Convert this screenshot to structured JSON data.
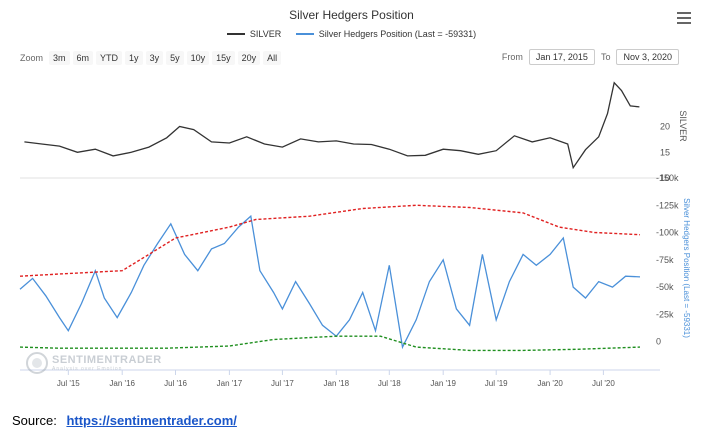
{
  "title": "Silver Hedgers Position",
  "legend": [
    {
      "label": "SILVER",
      "color": "#333333"
    },
    {
      "label": "Silver Hedgers Position (Last = -59331)",
      "color": "#4a90d9"
    }
  ],
  "zoom": {
    "label": "Zoom",
    "buttons": [
      "3m",
      "6m",
      "YTD",
      "1y",
      "3y",
      "5y",
      "10y",
      "15y",
      "20y",
      "All"
    ]
  },
  "range": {
    "from_label": "From",
    "from_value": "Jan 17, 2015",
    "to_label": "To",
    "to_value": "Nov 3, 2020"
  },
  "watermark": {
    "name": "SENTIMENTRADER",
    "tagline": "Analysis over Emotion"
  },
  "source": {
    "label": "Source:",
    "link": "https://sentimentrader.com/"
  },
  "colors": {
    "silver": "#333333",
    "hedgers": "#4a90d9",
    "upper_band": "#e02020",
    "lower_band": "#1f8f1f"
  },
  "chart_data": [
    {
      "type": "line",
      "ylabel": "SILVER",
      "yticks": [
        "20",
        "15",
        "10"
      ],
      "ylim": [
        10,
        30
      ],
      "grid": false,
      "series": [
        {
          "name": "SILVER",
          "x": [
            "2015-02-01",
            "2015-04-01",
            "2015-06-01",
            "2015-08-01",
            "2015-10-01",
            "2015-12-01",
            "2016-02-01",
            "2016-04-01",
            "2016-06-01",
            "2016-07-15",
            "2016-09-01",
            "2016-11-01",
            "2017-01-01",
            "2017-03-01",
            "2017-05-01",
            "2017-07-01",
            "2017-09-01",
            "2017-11-01",
            "2018-01-01",
            "2018-03-01",
            "2018-05-01",
            "2018-07-01",
            "2018-09-01",
            "2018-11-01",
            "2019-01-01",
            "2019-03-01",
            "2019-05-01",
            "2019-07-01",
            "2019-09-01",
            "2019-11-01",
            "2020-01-01",
            "2020-03-01",
            "2020-03-20",
            "2020-05-01",
            "2020-06-15",
            "2020-07-15",
            "2020-08-07",
            "2020-09-01",
            "2020-10-01",
            "2020-11-01"
          ],
          "values": [
            17.0,
            16.6,
            16.2,
            15.0,
            15.6,
            14.3,
            15.0,
            16.0,
            17.8,
            20.0,
            19.4,
            17.0,
            16.8,
            18.0,
            16.6,
            16.0,
            17.6,
            17.0,
            17.2,
            16.6,
            16.5,
            15.6,
            14.3,
            14.4,
            15.6,
            15.3,
            14.6,
            15.3,
            18.2,
            17.0,
            17.8,
            16.6,
            12.0,
            15.5,
            18.0,
            22.5,
            28.5,
            27.0,
            24.0,
            23.8
          ]
        }
      ]
    },
    {
      "type": "line",
      "ylabel": "Silver Hedgers Position (Last = -59331)",
      "yticks": [
        "-150k",
        "-125k",
        "-100k",
        "-75k",
        "-50k",
        "-25k",
        "0"
      ],
      "ylim": [
        -150000,
        15000
      ],
      "grid": false,
      "xticks": [
        "Jul '15",
        "Jan '16",
        "Jul '16",
        "Jan '17",
        "Jul '17",
        "Jan '18",
        "Jul '18",
        "Jan '19",
        "Jul '19",
        "Jan '20",
        "Jul '20"
      ],
      "series": [
        {
          "name": "Silver Hedgers Position (Last = -59331)",
          "x": [
            "2015-01-17",
            "2015-03-01",
            "2015-04-15",
            "2015-06-01",
            "2015-07-01",
            "2015-08-15",
            "2015-10-01",
            "2015-11-01",
            "2015-12-15",
            "2016-02-01",
            "2016-03-15",
            "2016-05-01",
            "2016-06-15",
            "2016-08-01",
            "2016-09-15",
            "2016-11-01",
            "2016-12-15",
            "2017-02-01",
            "2017-03-15",
            "2017-04-15",
            "2017-06-01",
            "2017-07-01",
            "2017-08-15",
            "2017-10-01",
            "2017-11-15",
            "2018-01-01",
            "2018-02-15",
            "2018-04-01",
            "2018-05-15",
            "2018-07-01",
            "2018-08-15",
            "2018-10-01",
            "2018-11-15",
            "2019-01-01",
            "2019-02-15",
            "2019-04-01",
            "2019-05-15",
            "2019-07-01",
            "2019-08-15",
            "2019-10-01",
            "2019-11-15",
            "2020-01-01",
            "2020-02-15",
            "2020-03-20",
            "2020-05-01",
            "2020-06-15",
            "2020-08-01",
            "2020-09-15",
            "2020-11-03"
          ],
          "values": [
            -48000,
            -58000,
            -42000,
            -22000,
            -10000,
            -35000,
            -65000,
            -40000,
            -22000,
            -45000,
            -70000,
            -90000,
            -108000,
            -80000,
            -65000,
            -85000,
            -90000,
            -105000,
            -115000,
            -65000,
            -45000,
            -30000,
            -55000,
            -35000,
            -15000,
            -5000,
            -20000,
            -45000,
            -10000,
            -70000,
            5000,
            -20000,
            -55000,
            -75000,
            -30000,
            -15000,
            -80000,
            -20000,
            -55000,
            -80000,
            -70000,
            -80000,
            -95000,
            -50000,
            -40000,
            -55000,
            -50000,
            -60000,
            -59331
          ]
        },
        {
          "name": "",
          "x": [
            "2015-01-17",
            "2015-06-01",
            "2016-01-01",
            "2016-04-01",
            "2016-07-01",
            "2017-01-01",
            "2017-04-01",
            "2017-10-01",
            "2018-04-01",
            "2018-10-01",
            "2019-04-01",
            "2019-10-01",
            "2020-02-01",
            "2020-06-01",
            "2020-11-03"
          ],
          "values": [
            -60000,
            -62000,
            -65000,
            -80000,
            -95000,
            -105000,
            -112000,
            -115000,
            -122000,
            -125000,
            -123000,
            -118000,
            -105000,
            -100000,
            -98000
          ]
        },
        {
          "name": "",
          "x": [
            "2015-01-17",
            "2015-06-01",
            "2016-01-01",
            "2016-06-01",
            "2017-01-01",
            "2017-06-01",
            "2018-01-01",
            "2018-06-01",
            "2018-10-01",
            "2019-04-01",
            "2019-10-01",
            "2020-04-01",
            "2020-11-03"
          ],
          "values": [
            5000,
            6000,
            6000,
            6000,
            4000,
            -2000,
            -5000,
            -5000,
            5000,
            8000,
            8000,
            7000,
            5000
          ]
        }
      ]
    }
  ]
}
